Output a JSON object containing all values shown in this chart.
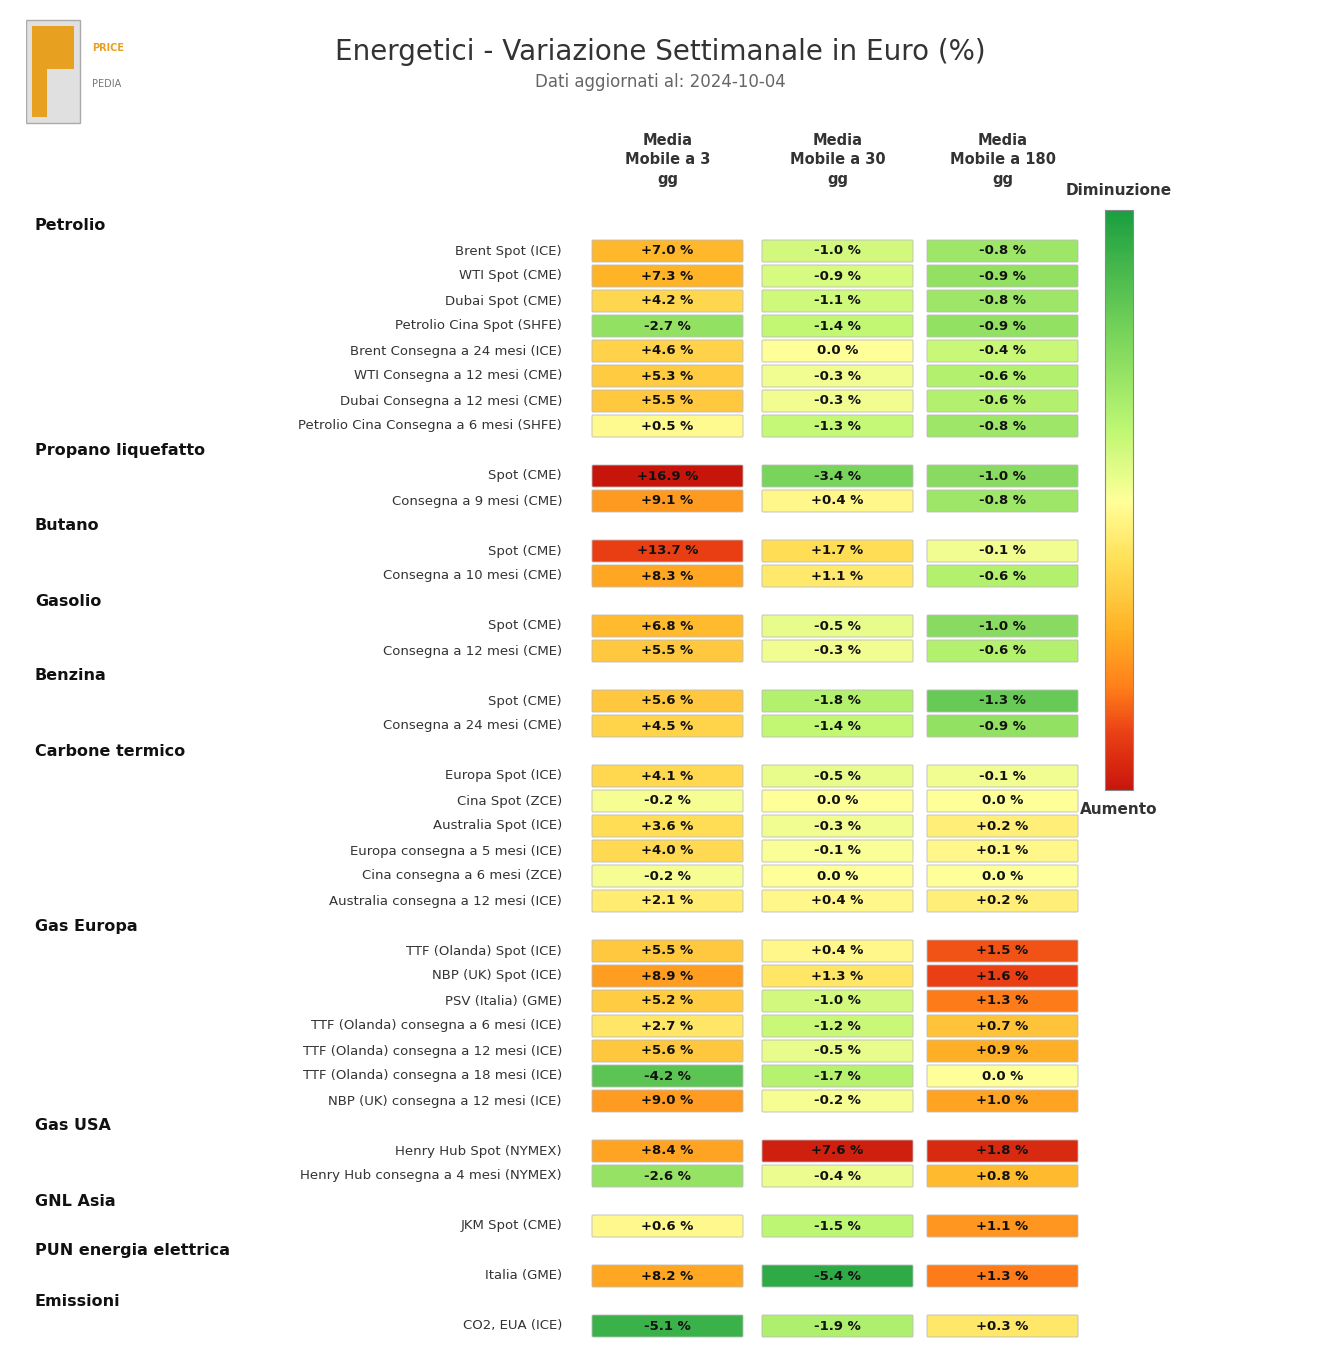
{
  "title": "Energetici - Variazione Settimanale in Euro (%)",
  "subtitle": "Dati aggiornati al: 2024-10-04",
  "col_headers": [
    "Media\nMobile a 3\ngg",
    "Media\nMobile a 30\ngg",
    "Media\nMobile a 180\ngg"
  ],
  "rows": [
    [
      "Petrolio",
      null,
      true
    ],
    [
      "Brent Spot (ICE)",
      "Brent Spot (ICE)_0",
      false
    ],
    [
      "WTI Spot (CME)",
      "WTI Spot (CME)_0",
      false
    ],
    [
      "Dubai Spot (CME)",
      "Dubai Spot (CME)_0",
      false
    ],
    [
      "Petrolio Cina Spot (SHFE)",
      "Petrolio Cina Spot (SHFE)_0",
      false
    ],
    [
      "Brent Consegna a 24 mesi (ICE)",
      "Brent Consegna a 24 mesi (ICE)_0",
      false
    ],
    [
      "WTI Consegna a 12 mesi (CME)",
      "WTI Consegna a 12 mesi (CME)_0",
      false
    ],
    [
      "Dubai Consegna a 12 mesi (CME)",
      "Dubai Consegna a 12 mesi (CME)_0",
      false
    ],
    [
      "Petrolio Cina Consegna a 6 mesi (SHFE)",
      "Petrolio Cina Consegna a 6 mesi (SHFE)_0",
      false
    ],
    [
      "Propano liquefatto",
      null,
      true
    ],
    [
      "Spot (CME)",
      "Propano_Spot (CME)_0",
      false
    ],
    [
      "Consegna a 9 mesi (CME)",
      "Propano_Consegna a 9 mesi (CME)_0",
      false
    ],
    [
      "Butano",
      null,
      true
    ],
    [
      "Spot (CME)",
      "Butano_Spot (CME)_0",
      false
    ],
    [
      "Consegna a 10 mesi (CME)",
      "Butano_Consegna a 10 mesi (CME)_0",
      false
    ],
    [
      "Gasolio",
      null,
      true
    ],
    [
      "Spot (CME)",
      "Gasolio_Spot (CME)_0",
      false
    ],
    [
      "Consegna a 12 mesi (CME)",
      "Gasolio_Consegna a 12 mesi (CME)_0",
      false
    ],
    [
      "Benzina",
      null,
      true
    ],
    [
      "Spot (CME)",
      "Benzina_Spot (CME)_0",
      false
    ],
    [
      "Consegna a 24 mesi (CME)",
      "Benzina_Consegna a 24 mesi (CME)_0",
      false
    ],
    [
      "Carbone termico",
      null,
      true
    ],
    [
      "Europa Spot (ICE)",
      "Europa Spot (ICE)_0",
      false
    ],
    [
      "Cina Spot (ZCE)",
      "Cina Spot (ZCE)_0",
      false
    ],
    [
      "Australia Spot (ICE)",
      "Australia Spot (ICE)_0",
      false
    ],
    [
      "Europa consegna a 5 mesi (ICE)",
      "Europa consegna a 5 mesi (ICE)_0",
      false
    ],
    [
      "Cina consegna a 6 mesi (ZCE)",
      "Cina consegna a 6 mesi (ZCE)_0",
      false
    ],
    [
      "Australia consegna a 12 mesi (ICE)",
      "Australia consegna a 12 mesi (ICE)_0",
      false
    ],
    [
      "Gas Europa",
      null,
      true
    ],
    [
      "TTF (Olanda) Spot (ICE)",
      "TTF (Olanda) Spot (ICE)_0",
      false
    ],
    [
      "NBP (UK) Spot (ICE)",
      "NBP (UK) Spot (ICE)_0",
      false
    ],
    [
      "PSV (Italia) (GME)",
      "PSV (Italia) (GME)_0",
      false
    ],
    [
      "TTF (Olanda) consegna a 6 mesi (ICE)",
      "TTF (Olanda) consegna a 6 mesi (ICE)_0",
      false
    ],
    [
      "TTF (Olanda) consegna a 12 mesi (ICE)",
      "TTF (Olanda) consegna a 12 mesi (ICE)_0",
      false
    ],
    [
      "TTF (Olanda) consegna a 18 mesi (ICE)",
      "TTF (Olanda) consegna a 18 mesi (ICE)_0",
      false
    ],
    [
      "NBP (UK) consegna a 12 mesi (ICE)",
      "NBP (UK) consegna a 12 mesi (ICE)_0",
      false
    ],
    [
      "Gas USA",
      null,
      true
    ],
    [
      "Henry Hub Spot (NYMEX)",
      "Henry Hub Spot (NYMEX)_0",
      false
    ],
    [
      "Henry Hub consegna a 4 mesi (NYMEX)",
      "Henry Hub consegna a 4 mesi (NYMEX)_0",
      false
    ],
    [
      "GNL Asia",
      null,
      true
    ],
    [
      "JKM Spot (CME)",
      "JKM Spot (CME)_0",
      false
    ],
    [
      "PUN energia elettrica",
      null,
      true
    ],
    [
      "Italia (GME)",
      "Italia (GME)_0",
      false
    ],
    [
      "Emissioni",
      null,
      true
    ],
    [
      "CO2, EUA (ICE)",
      "CO2, EUA (ICE)_0",
      false
    ]
  ],
  "values": {
    "Brent Spot (ICE)_0": [
      7.0,
      -1.0,
      -0.8
    ],
    "WTI Spot (CME)_0": [
      7.3,
      -0.9,
      -0.9
    ],
    "Dubai Spot (CME)_0": [
      4.2,
      -1.1,
      -0.8
    ],
    "Petrolio Cina Spot (SHFE)_0": [
      -2.7,
      -1.4,
      -0.9
    ],
    "Brent Consegna a 24 mesi (ICE)_0": [
      4.6,
      0.0,
      -0.4
    ],
    "WTI Consegna a 12 mesi (CME)_0": [
      5.3,
      -0.3,
      -0.6
    ],
    "Dubai Consegna a 12 mesi (CME)_0": [
      5.5,
      -0.3,
      -0.6
    ],
    "Petrolio Cina Consegna a 6 mesi (SHFE)_0": [
      0.5,
      -1.3,
      -0.8
    ],
    "Propano_Spot (CME)_0": [
      16.9,
      -3.4,
      -1.0
    ],
    "Propano_Consegna a 9 mesi (CME)_0": [
      9.1,
      0.4,
      -0.8
    ],
    "Butano_Spot (CME)_0": [
      13.7,
      1.7,
      -0.1
    ],
    "Butano_Consegna a 10 mesi (CME)_0": [
      8.3,
      1.1,
      -0.6
    ],
    "Gasolio_Spot (CME)_0": [
      6.8,
      -0.5,
      -1.0
    ],
    "Gasolio_Consegna a 12 mesi (CME)_0": [
      5.5,
      -0.3,
      -0.6
    ],
    "Benzina_Spot (CME)_0": [
      5.6,
      -1.8,
      -1.3
    ],
    "Benzina_Consegna a 24 mesi (CME)_0": [
      4.5,
      -1.4,
      -0.9
    ],
    "Europa Spot (ICE)_0": [
      4.1,
      -0.5,
      -0.1
    ],
    "Cina Spot (ZCE)_0": [
      -0.2,
      0.0,
      0.0
    ],
    "Australia Spot (ICE)_0": [
      3.6,
      -0.3,
      0.2
    ],
    "Europa consegna a 5 mesi (ICE)_0": [
      4.0,
      -0.1,
      0.1
    ],
    "Cina consegna a 6 mesi (ZCE)_0": [
      -0.2,
      0.0,
      0.0
    ],
    "Australia consegna a 12 mesi (ICE)_0": [
      2.1,
      0.4,
      0.2
    ],
    "TTF (Olanda) Spot (ICE)_0": [
      5.5,
      0.4,
      1.5
    ],
    "NBP (UK) Spot (ICE)_0": [
      8.9,
      1.3,
      1.6
    ],
    "PSV (Italia) (GME)_0": [
      5.2,
      -1.0,
      1.3
    ],
    "TTF (Olanda) consegna a 6 mesi (ICE)_0": [
      2.7,
      -1.2,
      0.7
    ],
    "TTF (Olanda) consegna a 12 mesi (ICE)_0": [
      5.6,
      -0.5,
      0.9
    ],
    "TTF (Olanda) consegna a 18 mesi (ICE)_0": [
      -4.2,
      -1.7,
      0.0
    ],
    "NBP (UK) consegna a 12 mesi (ICE)_0": [
      9.0,
      -0.2,
      1.0
    ],
    "Henry Hub Spot (NYMEX)_0": [
      8.4,
      7.6,
      1.8
    ],
    "Henry Hub consegna a 4 mesi (NYMEX)_0": [
      -2.6,
      -0.4,
      0.8
    ],
    "JKM Spot (CME)_0": [
      0.6,
      -1.5,
      1.1
    ],
    "Italia (GME)_0": [
      8.2,
      -5.4,
      1.3
    ],
    "CO2, EUA (ICE)_0": [
      -5.1,
      -1.9,
      0.3
    ]
  },
  "display_values": {
    "Brent Spot (ICE)_0": [
      "+7.0 %",
      "-1.0 %",
      "-0.8 %"
    ],
    "WTI Spot (CME)_0": [
      "+7.3 %",
      "-0.9 %",
      "-0.9 %"
    ],
    "Dubai Spot (CME)_0": [
      "+4.2 %",
      "-1.1 %",
      "-0.8 %"
    ],
    "Petrolio Cina Spot (SHFE)_0": [
      "-2.7 %",
      "-1.4 %",
      "-0.9 %"
    ],
    "Brent Consegna a 24 mesi (ICE)_0": [
      "+4.6 %",
      "0.0 %",
      "-0.4 %"
    ],
    "WTI Consegna a 12 mesi (CME)_0": [
      "+5.3 %",
      "-0.3 %",
      "-0.6 %"
    ],
    "Dubai Consegna a 12 mesi (CME)_0": [
      "+5.5 %",
      "-0.3 %",
      "-0.6 %"
    ],
    "Petrolio Cina Consegna a 6 mesi (SHFE)_0": [
      "+0.5 %",
      "-1.3 %",
      "-0.8 %"
    ],
    "Propano_Spot (CME)_0": [
      "+16.9 %",
      "-3.4 %",
      "-1.0 %"
    ],
    "Propano_Consegna a 9 mesi (CME)_0": [
      "+9.1 %",
      "+0.4 %",
      "-0.8 %"
    ],
    "Butano_Spot (CME)_0": [
      "+13.7 %",
      "+1.7 %",
      "-0.1 %"
    ],
    "Butano_Consegna a 10 mesi (CME)_0": [
      "+8.3 %",
      "+1.1 %",
      "-0.6 %"
    ],
    "Gasolio_Spot (CME)_0": [
      "+6.8 %",
      "-0.5 %",
      "-1.0 %"
    ],
    "Gasolio_Consegna a 12 mesi (CME)_0": [
      "+5.5 %",
      "-0.3 %",
      "-0.6 %"
    ],
    "Benzina_Spot (CME)_0": [
      "+5.6 %",
      "-1.8 %",
      "-1.3 %"
    ],
    "Benzina_Consegna a 24 mesi (CME)_0": [
      "+4.5 %",
      "-1.4 %",
      "-0.9 %"
    ],
    "Europa Spot (ICE)_0": [
      "+4.1 %",
      "-0.5 %",
      "-0.1 %"
    ],
    "Cina Spot (ZCE)_0": [
      "-0.2 %",
      "0.0 %",
      "0.0 %"
    ],
    "Australia Spot (ICE)_0": [
      "+3.6 %",
      "-0.3 %",
      "+0.2 %"
    ],
    "Europa consegna a 5 mesi (ICE)_0": [
      "+4.0 %",
      "-0.1 %",
      "+0.1 %"
    ],
    "Cina consegna a 6 mesi (ZCE)_0": [
      "-0.2 %",
      "0.0 %",
      "0.0 %"
    ],
    "Australia consegna a 12 mesi (ICE)_0": [
      "+2.1 %",
      "+0.4 %",
      "+0.2 %"
    ],
    "TTF (Olanda) Spot (ICE)_0": [
      "+5.5 %",
      "+0.4 %",
      "+1.5 %"
    ],
    "NBP (UK) Spot (ICE)_0": [
      "+8.9 %",
      "+1.3 %",
      "+1.6 %"
    ],
    "PSV (Italia) (GME)_0": [
      "+5.2 %",
      "-1.0 %",
      "+1.3 %"
    ],
    "TTF (Olanda) consegna a 6 mesi (ICE)_0": [
      "+2.7 %",
      "-1.2 %",
      "+0.7 %"
    ],
    "TTF (Olanda) consegna a 12 mesi (ICE)_0": [
      "+5.6 %",
      "-0.5 %",
      "+0.9 %"
    ],
    "TTF (Olanda) consegna a 18 mesi (ICE)_0": [
      "-4.2 %",
      "-1.7 %",
      "0.0 %"
    ],
    "NBP (UK) consegna a 12 mesi (ICE)_0": [
      "+9.0 %",
      "-0.2 %",
      "+1.0 %"
    ],
    "Henry Hub Spot (NYMEX)_0": [
      "+8.4 %",
      "+7.6 %",
      "+1.8 %"
    ],
    "Henry Hub consegna a 4 mesi (NYMEX)_0": [
      "-2.6 %",
      "-0.4 %",
      "+0.8 %"
    ],
    "JKM Spot (CME)_0": [
      "+0.6 %",
      "-1.5 %",
      "+1.1 %"
    ],
    "Italia (GME)_0": [
      "+8.2 %",
      "-5.4 %",
      "+1.3 %"
    ],
    "CO2, EUA (ICE)_0": [
      "-5.1 %",
      "-1.9 %",
      "+0.3 %"
    ]
  },
  "col_vmin": [
    -6,
    -6,
    -2
  ],
  "col_vmax": [
    17,
    8,
    2
  ],
  "background_color": "#ffffff"
}
